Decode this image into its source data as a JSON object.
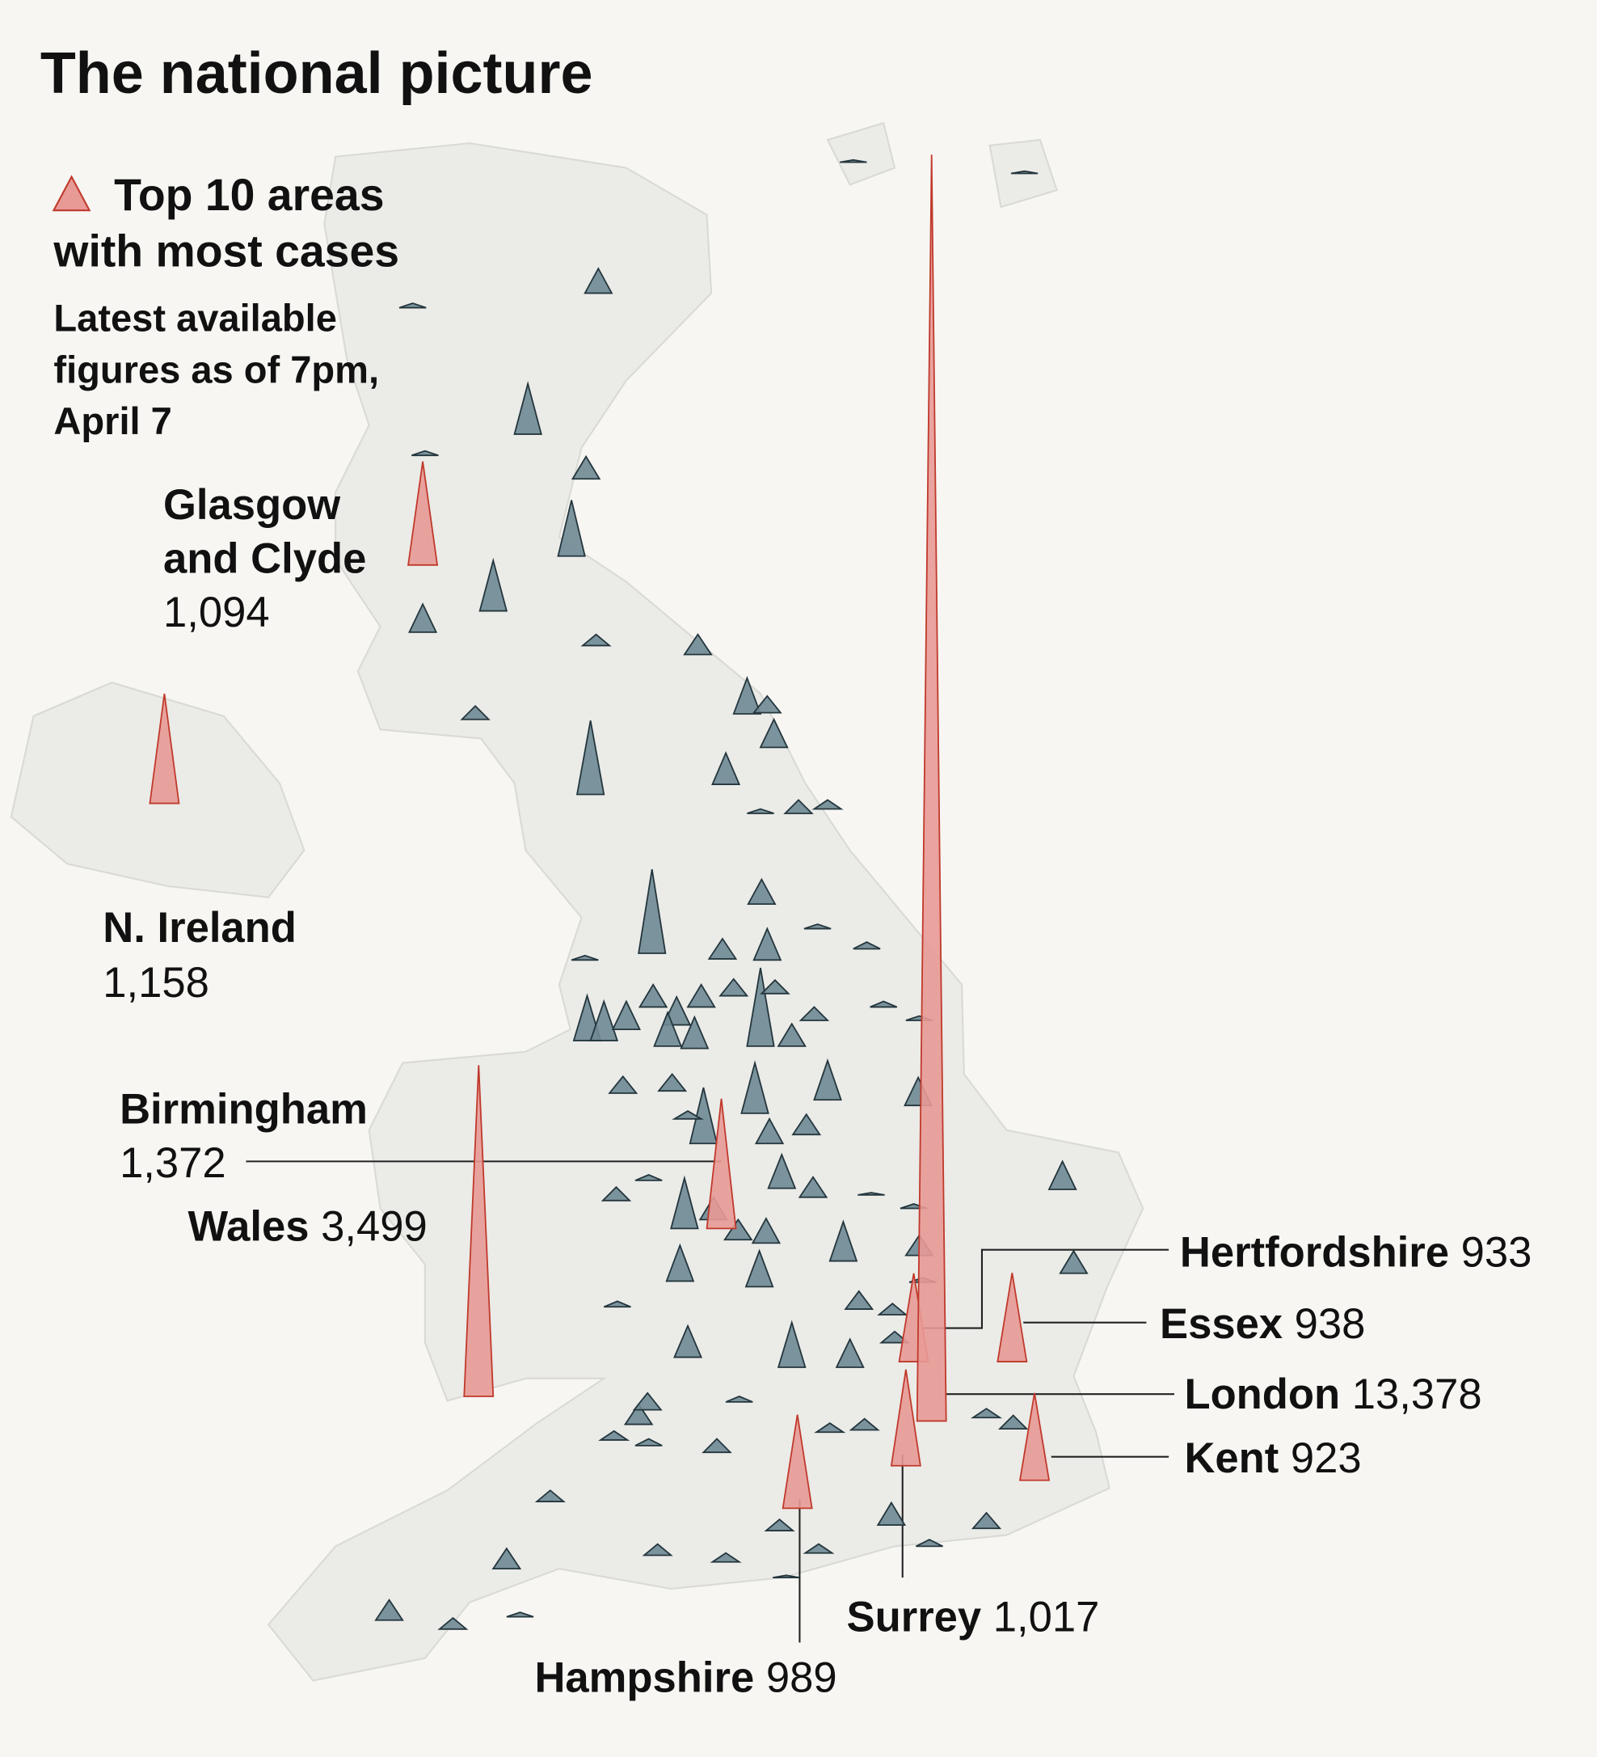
{
  "chart_data": {
    "type": "map",
    "title": "The national picture",
    "legend": "Top 10 areas with most cases",
    "subtitle": "Latest available figures as of 7pm, April 7",
    "highlight_color": "#e89a96",
    "other_color": "#6f8a94",
    "top_areas": [
      {
        "name": "Glasgow and Clyde",
        "value": 1094,
        "value_label": "1,094"
      },
      {
        "name": "N. Ireland",
        "value": 1158,
        "value_label": "1,158"
      },
      {
        "name": "Birmingham",
        "value": 1372,
        "value_label": "1,372"
      },
      {
        "name": "Wales",
        "value": 3499,
        "value_label": "3,499"
      },
      {
        "name": "Hertfordshire",
        "value": 933
      },
      {
        "name": "Essex",
        "value": 938
      },
      {
        "name": "London",
        "value": 13378,
        "value_label": "13,378"
      },
      {
        "name": "Kent",
        "value": 923
      },
      {
        "name": "Surrey",
        "value": 1017,
        "value_label": "1,017"
      },
      {
        "name": "Hampshire",
        "value": 989
      }
    ],
    "other_values": [
      260,
      532,
      236,
      591,
      532,
      296,
      118,
      213,
      142,
      378,
      177,
      296,
      780,
      331,
      47,
      142,
      95,
      260,
      887,
      213,
      331,
      47,
      47,
      71,
      827,
      177,
      142,
      236,
      296,
      236,
      473,
      414,
      296,
      355,
      331,
      142,
      236,
      47,
      59,
      532,
      414,
      296,
      177,
      177,
      591,
      260,
      213,
      355,
      213,
      532,
      236,
      213,
      260,
      414,
      213,
      378,
      378,
      296,
      236,
      142,
      59,
      83,
      189,
      118,
      118,
      331,
      473,
      296,
      47,
      213,
      177,
      95,
      71,
      142,
      59,
      95,
      118,
      95,
      142,
      118,
      213,
      118,
      95,
      118,
      95,
      236,
      71,
      165,
      213,
      118,
      47,
      24,
      47,
      47,
      24,
      24,
      24,
      47,
      59
    ]
  }
}
